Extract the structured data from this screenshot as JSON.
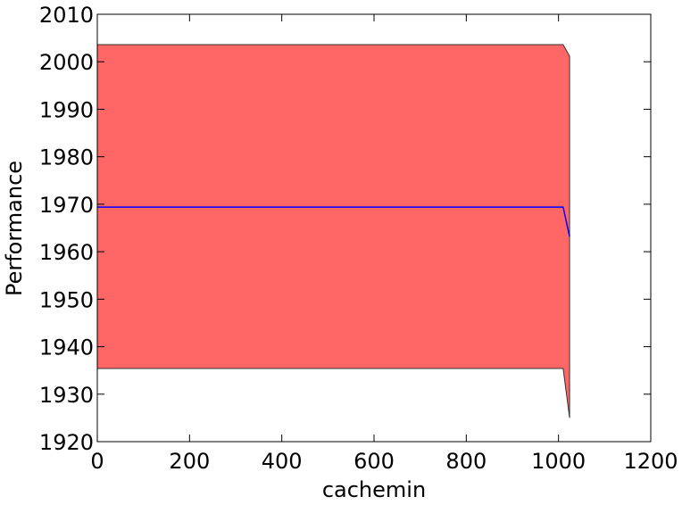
{
  "chart_data": {
    "type": "area",
    "title": "",
    "xlabel": "cachemin",
    "ylabel": "Performance",
    "xlim": [
      0,
      1200
    ],
    "ylim": [
      1920,
      2010
    ],
    "xticks": [
      0,
      200,
      400,
      600,
      800,
      1000,
      1200
    ],
    "yticks": [
      1920,
      1930,
      1940,
      1950,
      1960,
      1970,
      1980,
      1990,
      2000,
      2010
    ],
    "xtick_labels": [
      "0",
      "200",
      "400",
      "600",
      "800",
      "1000",
      "1200"
    ],
    "ytick_labels": [
      "1920",
      "1930",
      "1940",
      "1950",
      "1960",
      "1970",
      "1980",
      "1990",
      "2000",
      "2010"
    ],
    "grid": false,
    "series": [
      {
        "kind": "band",
        "color": "#ff6666",
        "x": [
          0,
          860,
          1010,
          1024
        ],
        "upper": [
          2003.6,
          2003.6,
          2003.6,
          2001.2
        ],
        "lower": [
          1935.4,
          1935.4,
          1935.4,
          1925.0
        ]
      },
      {
        "kind": "line",
        "color": "#0000ff",
        "x": [
          0,
          860,
          1010,
          1024
        ],
        "values": [
          1969.4,
          1969.4,
          1969.4,
          1963.2
        ]
      }
    ]
  }
}
